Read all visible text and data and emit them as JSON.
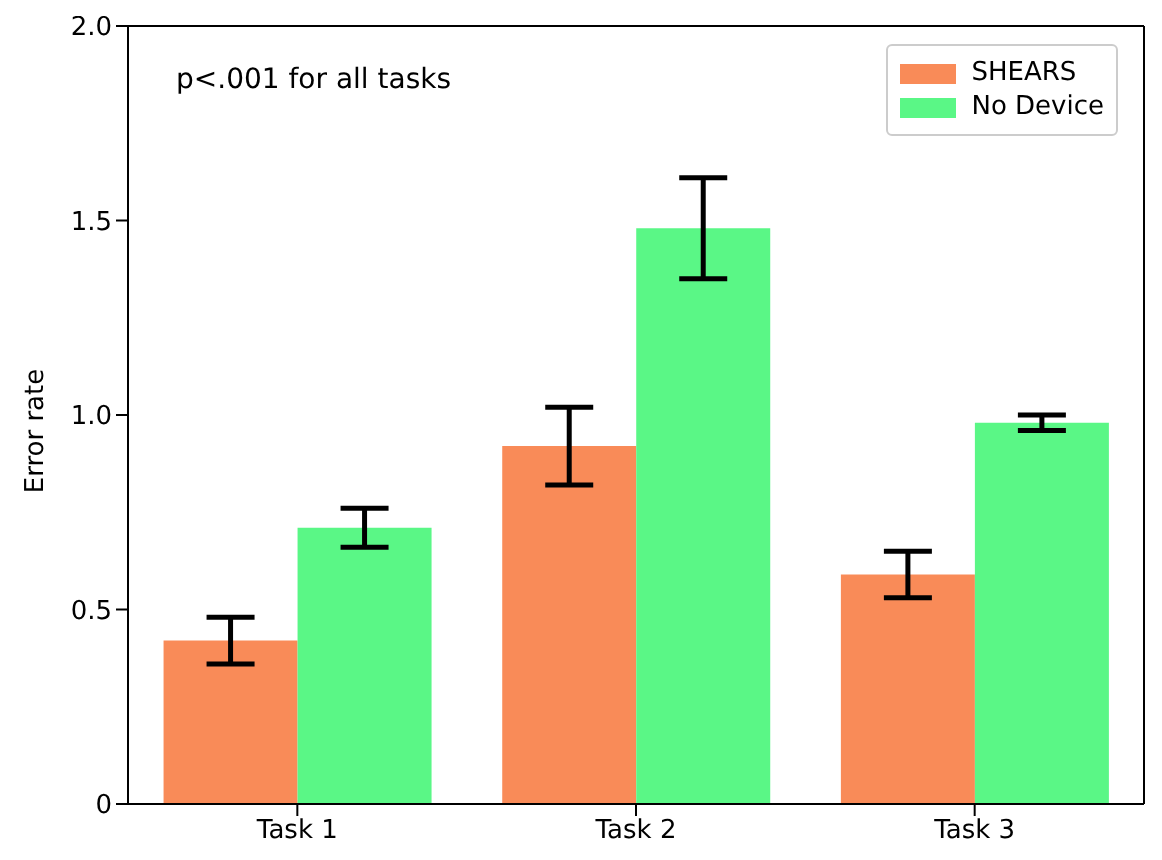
{
  "chart_data": {
    "type": "bar",
    "categories": [
      "Task 1",
      "Task 2",
      "Task 3"
    ],
    "ylabel": "Error rate",
    "ylim": [
      0,
      2
    ],
    "yticks": [
      0,
      0.5,
      {
        "value": 1,
        "label": "1.0"
      },
      {
        "value": 1.5,
        "label": "1.5"
      },
      {
        "value": 2,
        "label": "2.0"
      }
    ],
    "series": [
      {
        "name": "SHEARS",
        "color": "#f98b58",
        "values": [
          0.42,
          0.92,
          0.59
        ],
        "errors": [
          0.06,
          0.1,
          0.06
        ]
      },
      {
        "name": "No Device",
        "color": "#5af786",
        "values": [
          0.71,
          1.48,
          0.98
        ],
        "errors": [
          0.05,
          0.13,
          0.02
        ]
      }
    ],
    "annotations": [
      "p<.001 for all tasks"
    ],
    "legend": "top right",
    "grid": false
  }
}
